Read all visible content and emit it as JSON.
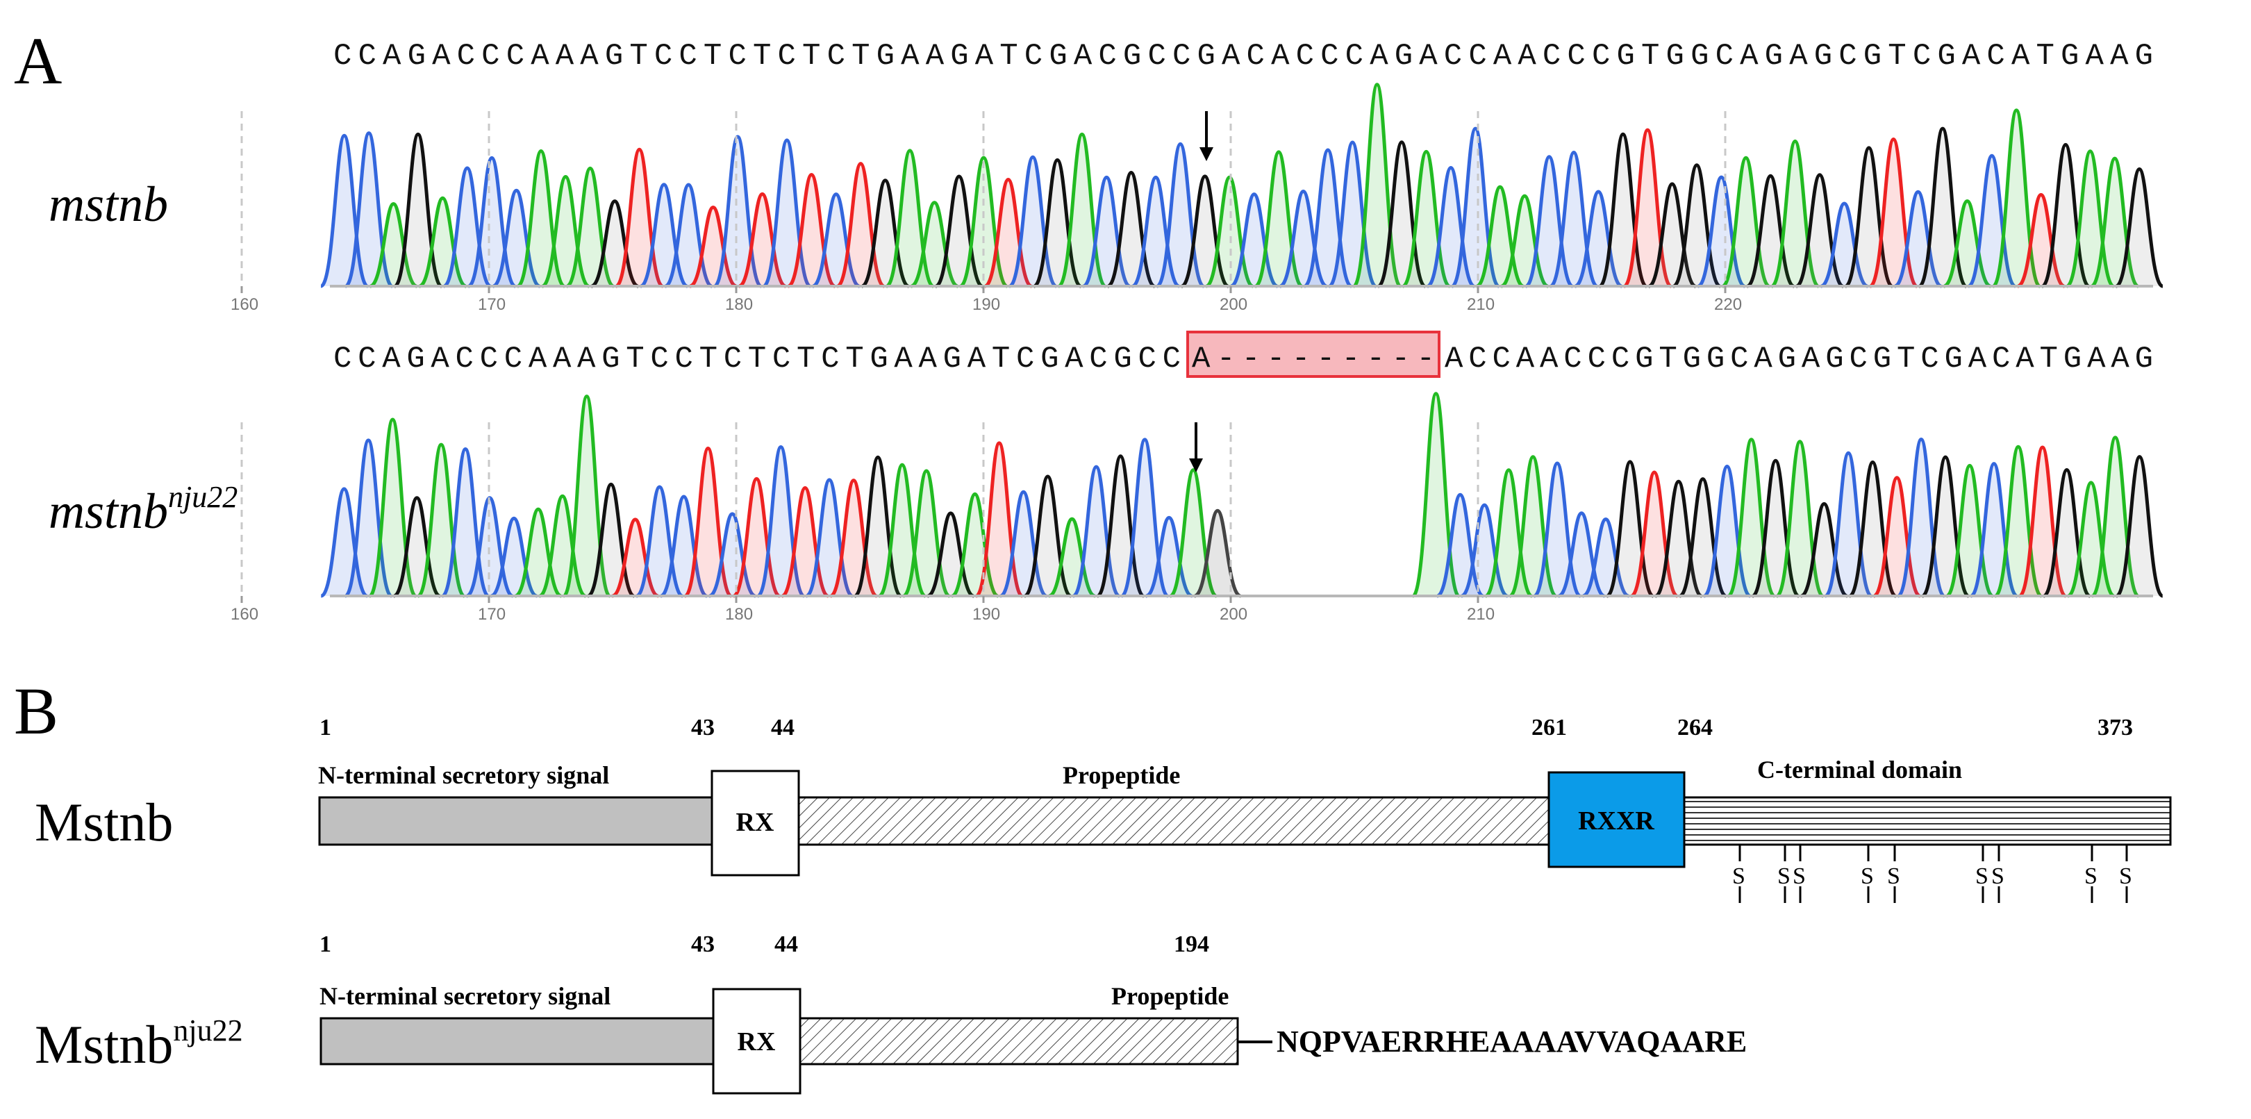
{
  "panel_a": {
    "label": "A",
    "wildtype": {
      "name": "mstnb",
      "sequence": "CCAGACCCAAAGTCCTCTCTCTGAAGATCGACGCCGACACCCAGACCAACCCGTGGCAGAGCGTCGACATGAAG",
      "axis_ticks": [
        "160",
        "170",
        "180",
        "190",
        "200",
        "210",
        "220"
      ]
    },
    "mutant": {
      "name": "mstnb",
      "superscript": "nju22",
      "sequence_left": "CCAGACCCAAAGTCCTCTCTCTGAAGATCGACGCC",
      "deletion_text": "A---------",
      "sequence_right": "ACCAACCCGTGGCAGAGCGTCGACATGAAG",
      "axis_ticks": [
        "160",
        "170",
        "180",
        "190",
        "200",
        "210"
      ]
    },
    "colors": {
      "A": "#22bb22",
      "C": "#3366dd",
      "G": "#111111",
      "T": "#ee2222",
      "deletion_fill": "#f7b8bd",
      "deletion_stroke": "#e8323c"
    }
  },
  "panel_b": {
    "label": "B",
    "wildtype": {
      "name": "Mstnb",
      "positions": [
        "1",
        "43",
        "44",
        "261",
        "264",
        "373"
      ],
      "domains": {
        "signal": "N-terminal secretory signal",
        "rx": "RX",
        "propeptide": "Propeptide",
        "rxxr": "RXXR",
        "cterm": "C-terminal domain"
      },
      "disulfide_label": "S"
    },
    "mutant": {
      "name": "Mstnb",
      "superscript": "nju22",
      "positions": [
        "1",
        "43",
        "44",
        "194"
      ],
      "domains": {
        "signal": "N-terminal secretory signal",
        "rx": "RX",
        "propeptide": "Propeptide"
      },
      "tail_sequence": "NQPVAERRHEAAAAVVAQAARE"
    },
    "colors": {
      "signal": "#c0c0c0",
      "rxxr": "#0b9be8"
    }
  }
}
